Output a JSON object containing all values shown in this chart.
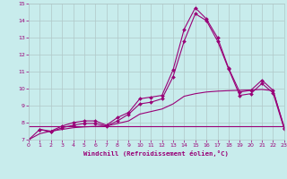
{
  "xlabel": "Windchill (Refroidissement éolien,°C)",
  "background_color": "#c8ecec",
  "grid_color": "#b0c8c8",
  "line_color": "#990077",
  "xlim": [
    0,
    23
  ],
  "ylim": [
    7,
    15
  ],
  "xticks": [
    0,
    1,
    2,
    3,
    4,
    5,
    6,
    7,
    8,
    9,
    10,
    11,
    12,
    13,
    14,
    15,
    16,
    17,
    18,
    19,
    20,
    21,
    22,
    23
  ],
  "yticks": [
    7,
    8,
    9,
    10,
    11,
    12,
    13,
    14,
    15
  ],
  "lines": [
    {
      "x": [
        0,
        1,
        2,
        3,
        4,
        5,
        6,
        7,
        8,
        9,
        10,
        11,
        12,
        13,
        14,
        15,
        16,
        17,
        18,
        19,
        20,
        21,
        22,
        23
      ],
      "y": [
        7.0,
        7.6,
        7.5,
        7.8,
        8.0,
        8.1,
        8.1,
        7.85,
        8.3,
        8.6,
        9.4,
        9.5,
        9.6,
        11.1,
        13.5,
        14.75,
        14.1,
        13.0,
        11.2,
        9.8,
        9.9,
        10.5,
        9.9,
        7.7
      ],
      "has_marker": true
    },
    {
      "x": [
        1,
        2,
        3,
        4,
        5,
        6,
        7,
        8,
        9,
        10,
        11,
        12,
        13,
        14,
        15,
        16,
        17,
        18,
        19,
        20,
        21,
        22,
        23
      ],
      "y": [
        7.6,
        7.45,
        7.7,
        7.85,
        7.95,
        7.95,
        7.8,
        8.1,
        8.5,
        9.1,
        9.2,
        9.4,
        10.7,
        12.8,
        14.4,
        14.0,
        12.8,
        11.15,
        9.6,
        9.7,
        10.3,
        9.75,
        7.65
      ],
      "has_marker": true
    },
    {
      "x": [
        0,
        1,
        2,
        3,
        4,
        5,
        6,
        7,
        8,
        9,
        10,
        11,
        12,
        13,
        14,
        15,
        16,
        17,
        18,
        19,
        20,
        21,
        22,
        23
      ],
      "y": [
        7.0,
        7.35,
        7.5,
        7.6,
        7.7,
        7.75,
        7.78,
        7.8,
        7.95,
        8.1,
        8.5,
        8.65,
        8.8,
        9.1,
        9.55,
        9.7,
        9.8,
        9.85,
        9.88,
        9.9,
        9.92,
        9.95,
        9.88,
        7.75
      ],
      "has_marker": false
    },
    {
      "x": [
        0,
        23
      ],
      "y": [
        7.78,
        7.78
      ],
      "has_marker": false
    }
  ]
}
